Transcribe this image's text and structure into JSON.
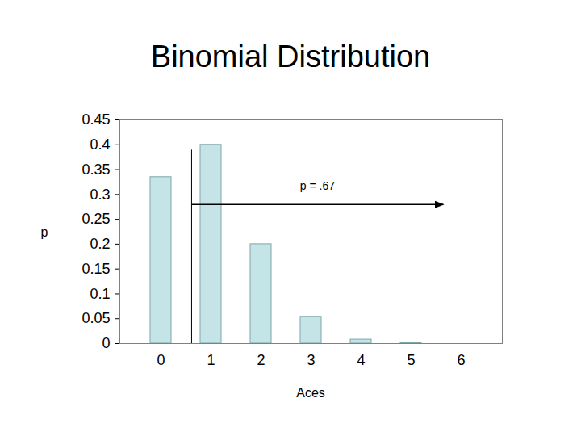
{
  "chart_data": {
    "type": "bar",
    "title": "Binomial Distribution",
    "x_label": "Aces",
    "y_label": "p",
    "categories": [
      "0",
      "1",
      "2",
      "3",
      "4",
      "5",
      "6"
    ],
    "values": [
      0.335,
      0.4,
      0.2,
      0.054,
      0.008,
      0.001,
      0
    ],
    "color": "#c4e4e8",
    "ylim": [
      0,
      0.45
    ],
    "yticks": [
      0,
      0.05,
      0.1,
      0.15,
      0.2,
      0.25,
      0.3,
      0.35,
      0.4,
      0.45
    ],
    "grid": false,
    "annotations": [
      "p = .67"
    ]
  }
}
